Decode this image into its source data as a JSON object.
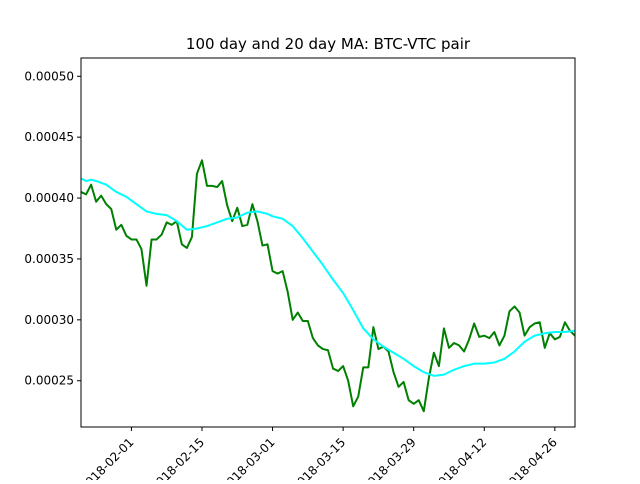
{
  "chart_data": {
    "type": "line",
    "title": "100 day and 20 day MA: BTC-VTC pair",
    "xlabel": "",
    "ylabel": "",
    "x_axis": {
      "kind": "date",
      "range": [
        "2018-01-22",
        "2018-04-30"
      ],
      "ticks": [
        "2018-02-01",
        "2018-02-15",
        "2018-03-01",
        "2018-03-15",
        "2018-03-29",
        "2018-04-12",
        "2018-04-26"
      ]
    },
    "y_axis": {
      "range": [
        0.000212,
        0.000515
      ],
      "ticks": [
        "0.00025",
        "0.00030",
        "0.00035",
        "0.00040",
        "0.00045",
        "0.00050"
      ]
    },
    "grid": false,
    "series": [
      {
        "color": "#008000",
        "points": [
          [
            "2018-01-22",
            0.000405
          ],
          [
            "2018-01-23",
            0.000403
          ],
          [
            "2018-01-24",
            0.000411
          ],
          [
            "2018-01-25",
            0.000397
          ],
          [
            "2018-01-26",
            0.000402
          ],
          [
            "2018-01-27",
            0.000395
          ],
          [
            "2018-01-28",
            0.000391
          ],
          [
            "2018-01-29",
            0.000374
          ],
          [
            "2018-01-30",
            0.000378
          ],
          [
            "2018-01-31",
            0.000369
          ],
          [
            "2018-02-01",
            0.000366
          ],
          [
            "2018-02-02",
            0.000366
          ],
          [
            "2018-02-03",
            0.000358
          ],
          [
            "2018-02-04",
            0.000328
          ],
          [
            "2018-02-05",
            0.000366
          ],
          [
            "2018-02-06",
            0.000366
          ],
          [
            "2018-02-07",
            0.00037
          ],
          [
            "2018-02-08",
            0.00038
          ],
          [
            "2018-02-09",
            0.000378
          ],
          [
            "2018-02-10",
            0.000381
          ],
          [
            "2018-02-11",
            0.000362
          ],
          [
            "2018-02-12",
            0.000359
          ],
          [
            "2018-02-13",
            0.000368
          ],
          [
            "2018-02-14",
            0.00042
          ],
          [
            "2018-02-15",
            0.000431
          ],
          [
            "2018-02-16",
            0.00041
          ],
          [
            "2018-02-17",
            0.00041
          ],
          [
            "2018-02-18",
            0.000409
          ],
          [
            "2018-02-19",
            0.000414
          ],
          [
            "2018-02-20",
            0.000394
          ],
          [
            "2018-02-21",
            0.000381
          ],
          [
            "2018-02-22",
            0.000392
          ],
          [
            "2018-02-23",
            0.000377
          ],
          [
            "2018-02-24",
            0.000378
          ],
          [
            "2018-02-25",
            0.000395
          ],
          [
            "2018-02-26",
            0.000381
          ],
          [
            "2018-02-27",
            0.000361
          ],
          [
            "2018-02-28",
            0.000362
          ],
          [
            "2018-03-01",
            0.00034
          ],
          [
            "2018-03-02",
            0.000338
          ],
          [
            "2018-03-03",
            0.00034
          ],
          [
            "2018-03-04",
            0.000323
          ],
          [
            "2018-03-05",
            0.0003
          ],
          [
            "2018-03-06",
            0.000306
          ],
          [
            "2018-03-07",
            0.000299
          ],
          [
            "2018-03-08",
            0.000299
          ],
          [
            "2018-03-09",
            0.000285
          ],
          [
            "2018-03-10",
            0.000279
          ],
          [
            "2018-03-11",
            0.000276
          ],
          [
            "2018-03-12",
            0.000275
          ],
          [
            "2018-03-13",
            0.00026
          ],
          [
            "2018-03-14",
            0.000258
          ],
          [
            "2018-03-15",
            0.000262
          ],
          [
            "2018-03-16",
            0.00025
          ],
          [
            "2018-03-17",
            0.000229
          ],
          [
            "2018-03-18",
            0.000237
          ],
          [
            "2018-03-19",
            0.000261
          ],
          [
            "2018-03-20",
            0.000261
          ],
          [
            "2018-03-21",
            0.000294
          ],
          [
            "2018-03-22",
            0.000276
          ],
          [
            "2018-03-23",
            0.000278
          ],
          [
            "2018-03-24",
            0.000274
          ],
          [
            "2018-03-25",
            0.000257
          ],
          [
            "2018-03-26",
            0.000245
          ],
          [
            "2018-03-27",
            0.000249
          ],
          [
            "2018-03-28",
            0.000234
          ],
          [
            "2018-03-29",
            0.000231
          ],
          [
            "2018-03-30",
            0.000234
          ],
          [
            "2018-03-31",
            0.000225
          ],
          [
            "2018-04-01",
            0.000252
          ],
          [
            "2018-04-02",
            0.000273
          ],
          [
            "2018-04-03",
            0.000262
          ],
          [
            "2018-04-04",
            0.000293
          ],
          [
            "2018-04-05",
            0.000277
          ],
          [
            "2018-04-06",
            0.000281
          ],
          [
            "2018-04-07",
            0.000279
          ],
          [
            "2018-04-08",
            0.000274
          ],
          [
            "2018-04-09",
            0.000284
          ],
          [
            "2018-04-10",
            0.000297
          ],
          [
            "2018-04-11",
            0.000286
          ],
          [
            "2018-04-12",
            0.000287
          ],
          [
            "2018-04-13",
            0.000285
          ],
          [
            "2018-04-14",
            0.00029
          ],
          [
            "2018-04-15",
            0.000279
          ],
          [
            "2018-04-16",
            0.000287
          ],
          [
            "2018-04-17",
            0.000307
          ],
          [
            "2018-04-18",
            0.000311
          ],
          [
            "2018-04-19",
            0.000306
          ],
          [
            "2018-04-20",
            0.000287
          ],
          [
            "2018-04-21",
            0.000294
          ],
          [
            "2018-04-22",
            0.000297
          ],
          [
            "2018-04-23",
            0.000298
          ],
          [
            "2018-04-24",
            0.000277
          ],
          [
            "2018-04-25",
            0.000289
          ],
          [
            "2018-04-26",
            0.000284
          ],
          [
            "2018-04-27",
            0.000286
          ],
          [
            "2018-04-28",
            0.000298
          ],
          [
            "2018-04-29",
            0.000291
          ],
          [
            "2018-04-30",
            0.000287
          ],
          [
            "2018-05-01",
            0.000293
          ]
        ]
      },
      {
        "color": "#00FFFF",
        "points": [
          [
            "2018-01-22",
            0.000416
          ],
          [
            "2018-01-23",
            0.000414
          ],
          [
            "2018-01-24",
            0.000415
          ],
          [
            "2018-01-25",
            0.000414
          ],
          [
            "2018-01-27",
            0.000411
          ],
          [
            "2018-01-29",
            0.000405
          ],
          [
            "2018-01-31",
            0.000401
          ],
          [
            "2018-02-02",
            0.000395
          ],
          [
            "2018-02-04",
            0.000389
          ],
          [
            "2018-02-06",
            0.000387
          ],
          [
            "2018-02-08",
            0.000386
          ],
          [
            "2018-02-10",
            0.000381
          ],
          [
            "2018-02-12",
            0.000374
          ],
          [
            "2018-02-14",
            0.000375
          ],
          [
            "2018-02-16",
            0.000377
          ],
          [
            "2018-02-18",
            0.00038
          ],
          [
            "2018-02-20",
            0.000383
          ],
          [
            "2018-02-22",
            0.000384
          ],
          [
            "2018-02-24",
            0.000388
          ],
          [
            "2018-02-26",
            0.000389
          ],
          [
            "2018-02-28",
            0.000387
          ],
          [
            "2018-03-01",
            0.000385
          ],
          [
            "2018-03-03",
            0.000383
          ],
          [
            "2018-03-05",
            0.000377
          ],
          [
            "2018-03-07",
            0.000367
          ],
          [
            "2018-03-09",
            0.000356
          ],
          [
            "2018-03-11",
            0.000345
          ],
          [
            "2018-03-13",
            0.000333
          ],
          [
            "2018-03-15",
            0.000322
          ],
          [
            "2018-03-17",
            0.000308
          ],
          [
            "2018-03-19",
            0.000293
          ],
          [
            "2018-03-21",
            0.000284
          ],
          [
            "2018-03-23",
            0.000278
          ],
          [
            "2018-03-25",
            0.000273
          ],
          [
            "2018-03-27",
            0.000268
          ],
          [
            "2018-03-29",
            0.000262
          ],
          [
            "2018-03-31",
            0.000257
          ],
          [
            "2018-04-02",
            0.000254
          ],
          [
            "2018-04-04",
            0.000255
          ],
          [
            "2018-04-06",
            0.000259
          ],
          [
            "2018-04-08",
            0.000262
          ],
          [
            "2018-04-10",
            0.000264
          ],
          [
            "2018-04-12",
            0.000264
          ],
          [
            "2018-04-14",
            0.000265
          ],
          [
            "2018-04-16",
            0.000268
          ],
          [
            "2018-04-18",
            0.000274
          ],
          [
            "2018-04-20",
            0.000282
          ],
          [
            "2018-04-22",
            0.000287
          ],
          [
            "2018-04-24",
            0.000289
          ],
          [
            "2018-04-26",
            0.00029
          ],
          [
            "2018-04-28",
            0.00029
          ],
          [
            "2018-04-30",
            0.000291
          ],
          [
            "2018-05-01",
            0.000292
          ]
        ]
      }
    ]
  }
}
